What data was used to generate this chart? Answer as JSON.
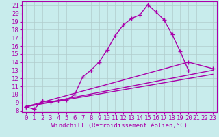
{
  "xlabel": "Windchill (Refroidissement éolien,°C)",
  "bg_color": "#c8ecec",
  "line_color": "#aa00aa",
  "grid_color": "#b0cccc",
  "xlim": [
    -0.5,
    23.5
  ],
  "ylim": [
    7.8,
    21.5
  ],
  "xticks": [
    0,
    1,
    2,
    3,
    4,
    5,
    6,
    7,
    8,
    9,
    10,
    11,
    12,
    13,
    14,
    15,
    16,
    17,
    18,
    19,
    20,
    21,
    22,
    23
  ],
  "yticks": [
    8,
    9,
    10,
    11,
    12,
    13,
    14,
    15,
    16,
    17,
    18,
    19,
    20,
    21
  ],
  "line1_x": [
    0,
    1,
    2,
    3,
    4,
    5,
    6,
    7,
    8,
    9,
    10,
    11,
    12,
    13,
    14,
    15,
    16,
    17,
    18,
    19,
    20
  ],
  "line1_y": [
    8.5,
    8.2,
    9.2,
    9.1,
    9.2,
    9.3,
    10.0,
    12.2,
    13.0,
    14.0,
    15.5,
    17.3,
    18.6,
    19.4,
    19.8,
    21.1,
    20.2,
    19.2,
    17.4,
    15.3,
    13.0
  ],
  "line2_x": [
    0,
    20,
    23
  ],
  "line2_y": [
    8.5,
    14.0,
    13.2
  ],
  "line3_x": [
    0,
    23
  ],
  "line3_y": [
    8.5,
    13.0
  ],
  "line4_x": [
    0,
    23
  ],
  "line4_y": [
    8.5,
    12.5
  ],
  "markersize": 4,
  "linewidth": 1.0,
  "tick_fontsize": 6.5,
  "xlabel_fontsize": 6.5
}
